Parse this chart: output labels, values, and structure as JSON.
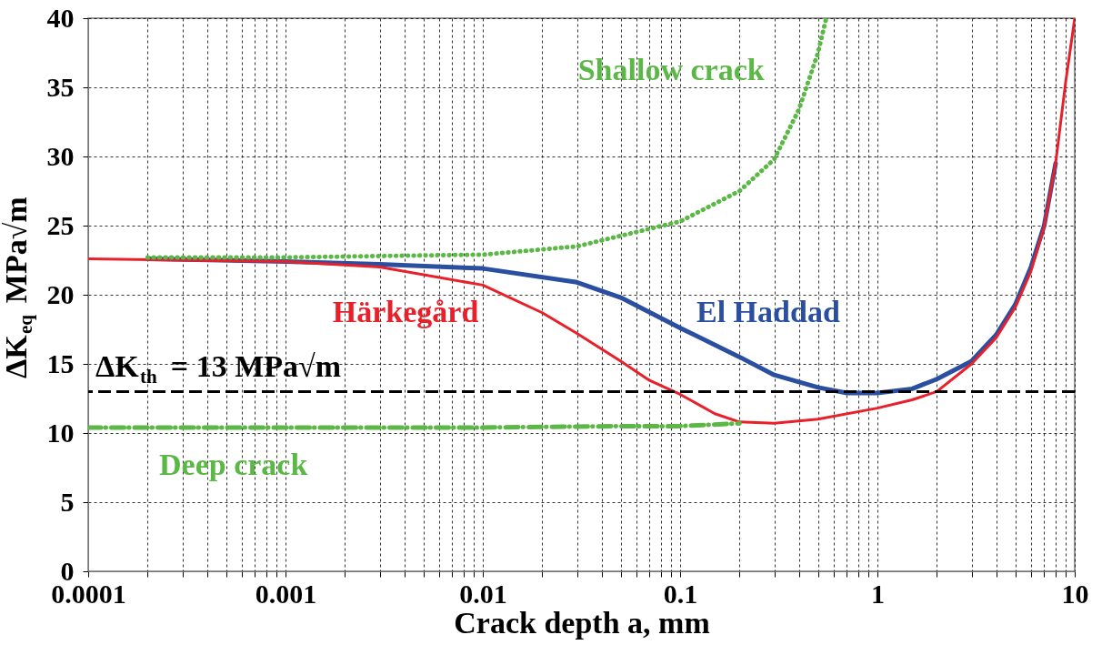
{
  "chart_data": {
    "type": "line",
    "xlabel": "Crack depth a, mm",
    "ylabel": "ΔK$_{eq}$ MPa√m",
    "log": "x",
    "grid": true,
    "marker": "none",
    "xlim": [
      0.0001,
      10
    ],
    "ylim": [
      0,
      40
    ],
    "xticks": [
      0.0001,
      {
        "value": 0.0002,
        "label": null
      },
      {
        "value": 0.0003,
        "label": null
      },
      {
        "value": 0.0004,
        "label": null
      },
      {
        "value": 0.0005,
        "label": null
      },
      {
        "value": 0.0006,
        "label": null
      },
      {
        "value": 0.0007,
        "label": null
      },
      {
        "value": 0.0008,
        "label": null
      },
      {
        "value": 0.0009,
        "label": null
      },
      0.001,
      {
        "value": 0.002,
        "label": null
      },
      {
        "value": 0.003,
        "label": null
      },
      {
        "value": 0.004,
        "label": null
      },
      {
        "value": 0.005,
        "label": null
      },
      {
        "value": 0.006,
        "label": null
      },
      {
        "value": 0.007,
        "label": null
      },
      {
        "value": 0.008,
        "label": null
      },
      {
        "value": 0.009,
        "label": null
      },
      0.01,
      {
        "value": 0.02,
        "label": null
      },
      {
        "value": 0.03,
        "label": null
      },
      {
        "value": 0.04,
        "label": null
      },
      {
        "value": 0.05,
        "label": null
      },
      {
        "value": 0.06,
        "label": null
      },
      {
        "value": 0.07,
        "label": null
      },
      {
        "value": 0.08,
        "label": null
      },
      {
        "value": 0.09,
        "label": null
      },
      0.1,
      {
        "value": 0.2,
        "label": null
      },
      {
        "value": 0.3,
        "label": null
      },
      {
        "value": 0.4,
        "label": null
      },
      {
        "value": 0.5,
        "label": null
      },
      {
        "value": 0.6,
        "label": null
      },
      {
        "value": 0.7,
        "label": null
      },
      {
        "value": 0.8,
        "label": null
      },
      {
        "value": 0.9,
        "label": null
      },
      1,
      {
        "value": 2,
        "label": null
      },
      {
        "value": 3,
        "label": null
      },
      {
        "value": 4,
        "label": null
      },
      {
        "value": 5,
        "label": null
      },
      {
        "value": 6,
        "label": null
      },
      {
        "value": 7,
        "label": null
      },
      {
        "value": 8,
        "label": null
      },
      {
        "value": 9,
        "label": null
      },
      10
    ],
    "yticks": [
      0,
      5,
      10,
      15,
      20,
      25,
      30,
      35,
      40
    ],
    "ref_lines": [
      {
        "axis": "y",
        "value": 13,
        "label": "ΔK$_{th}$ = 13 MPa√m",
        "color": "#000000",
        "line_style": "dashed"
      }
    ],
    "series": [
      {
        "name": "Deep crack",
        "color": "#5cb846",
        "line_style": "dashed",
        "x": [
          0.0001,
          0.001,
          0.01,
          0.05,
          0.1,
          0.2
        ],
        "values": [
          10.4,
          10.4,
          10.4,
          10.5,
          10.5,
          10.7
        ]
      },
      {
        "name": "Shallow crack",
        "color": "#5cb846",
        "line_style": "dotted",
        "x": [
          0.0002,
          0.001,
          0.003,
          0.01,
          0.03,
          0.1,
          0.2,
          0.3,
          0.4,
          0.5,
          0.55
        ],
        "values": [
          22.7,
          22.7,
          22.8,
          22.9,
          23.5,
          25.3,
          27.5,
          29.8,
          33.4,
          37.5,
          40
        ]
      },
      {
        "name": "El Haddad",
        "color": "#2a4fa0",
        "line_style": "solid",
        "x": [
          0.0002,
          0.001,
          0.003,
          0.01,
          0.03,
          0.05,
          0.1,
          0.2,
          0.3,
          0.5,
          0.7,
          1,
          1.5,
          2,
          3,
          4,
          5,
          6,
          7,
          8
        ],
        "values": [
          22.6,
          22.4,
          22.2,
          21.9,
          20.9,
          19.8,
          17.6,
          15.5,
          14.2,
          13.3,
          12.9,
          12.9,
          13.2,
          13.9,
          15.2,
          17.1,
          19.3,
          22,
          25,
          29.5
        ]
      },
      {
        "name": "Härkegård",
        "color": "#e8202a",
        "line_style": "solid",
        "x": [
          0.0001,
          0.001,
          0.003,
          0.01,
          0.02,
          0.03,
          0.05,
          0.07,
          0.1,
          0.15,
          0.2,
          0.3,
          0.5,
          1,
          1.5,
          2,
          3,
          4,
          5,
          6,
          7,
          8,
          9,
          10
        ],
        "values": [
          22.6,
          22.4,
          22.0,
          20.7,
          18.7,
          17.2,
          15.2,
          13.8,
          12.8,
          11.4,
          10.8,
          10.7,
          11.0,
          11.8,
          12.4,
          13.0,
          15.0,
          16.9,
          19.1,
          21.7,
          24.9,
          29.5,
          35.4,
          40
        ]
      }
    ]
  }
}
